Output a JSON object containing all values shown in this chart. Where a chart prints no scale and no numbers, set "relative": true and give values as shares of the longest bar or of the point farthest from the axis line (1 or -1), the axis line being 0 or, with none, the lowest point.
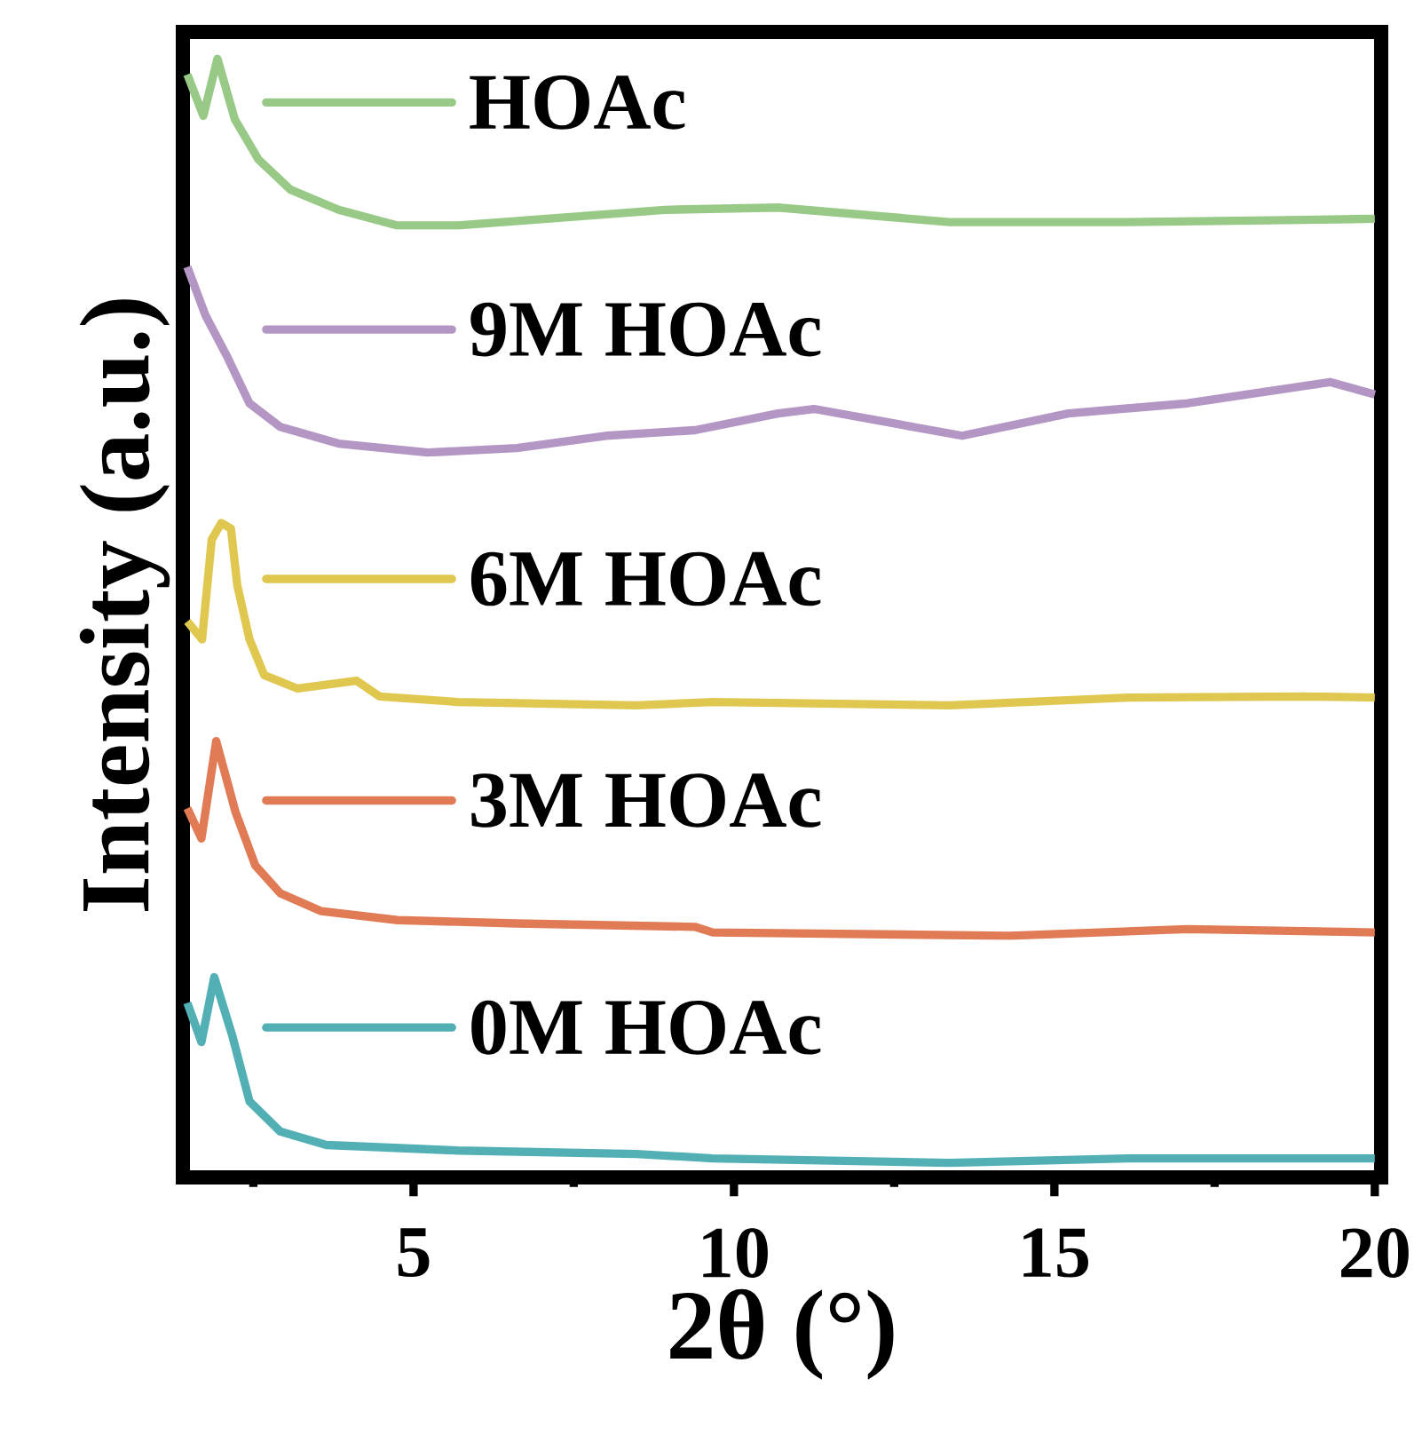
{
  "chart_data": {
    "type": "line",
    "xlabel": "2θ (°)",
    "ylabel": "Intensity (a.u.)",
    "relative": true,
    "legend": "left",
    "xlim": [
      1.4,
      20.1
    ],
    "xticks": [
      {
        "value": 2.5,
        "label": null
      },
      5,
      {
        "value": 7.5,
        "label": null
      },
      10,
      {
        "value": 12.5,
        "label": null
      },
      15,
      {
        "value": 17.5,
        "label": null
      },
      20
    ],
    "series": [
      {
        "name": "0M HOAc",
        "color": "#52b0b5",
        "x": [
          1.47,
          1.69,
          1.89,
          2.17,
          2.44,
          2.92,
          3.64,
          5.69,
          8.47,
          9.67,
          13.36,
          16.14,
          20.0
        ],
        "values": [
          0.156,
          0.121,
          0.179,
          0.127,
          0.068,
          0.041,
          0.029,
          0.024,
          0.021,
          0.017,
          0.013,
          0.017,
          0.017
        ]
      },
      {
        "name": "3M HOAc",
        "color": "#e07b55",
        "x": [
          1.47,
          1.69,
          1.92,
          2.22,
          2.53,
          2.92,
          3.56,
          4.75,
          6.61,
          9.39,
          9.67,
          14.3,
          17.08,
          20.0
        ],
        "values": [
          0.33,
          0.303,
          0.39,
          0.327,
          0.279,
          0.254,
          0.238,
          0.23,
          0.227,
          0.224,
          0.219,
          0.216,
          0.222,
          0.219
        ]
      },
      {
        "name": "6M HOAc",
        "color": "#e0c850",
        "x": [
          1.47,
          1.7,
          1.85,
          2.0,
          2.15,
          2.25,
          2.44,
          2.67,
          3.19,
          4.11,
          4.47,
          5.69,
          8.47,
          9.67,
          13.36,
          16.14,
          18.9,
          20.0
        ],
        "values": [
          0.497,
          0.481,
          0.57,
          0.585,
          0.58,
          0.529,
          0.481,
          0.449,
          0.437,
          0.444,
          0.43,
          0.425,
          0.422,
          0.425,
          0.422,
          0.429,
          0.43,
          0.429
        ]
      },
      {
        "name": "9M HOAc",
        "color": "#b496c4",
        "x": [
          1.47,
          1.75,
          2.08,
          2.44,
          2.92,
          3.83,
          5.22,
          6.61,
          8.0,
          9.39,
          10.69,
          11.25,
          13.56,
          15.22,
          17.08,
          19.3,
          20.0
        ],
        "values": [
          0.814,
          0.771,
          0.735,
          0.692,
          0.671,
          0.656,
          0.648,
          0.652,
          0.663,
          0.668,
          0.683,
          0.687,
          0.663,
          0.683,
          0.692,
          0.711,
          0.7
        ]
      },
      {
        "name": "HOAc",
        "color": "#98c987",
        "x": [
          1.47,
          1.72,
          1.94,
          2.21,
          2.58,
          3.08,
          3.83,
          4.75,
          5.69,
          7.08,
          8.92,
          10.69,
          13.36,
          16.14,
          18.9,
          20.0
        ],
        "values": [
          0.986,
          0.949,
          1.0,
          0.946,
          0.91,
          0.883,
          0.865,
          0.851,
          0.851,
          0.857,
          0.865,
          0.867,
          0.854,
          0.854,
          0.856,
          0.857
        ]
      }
    ]
  }
}
